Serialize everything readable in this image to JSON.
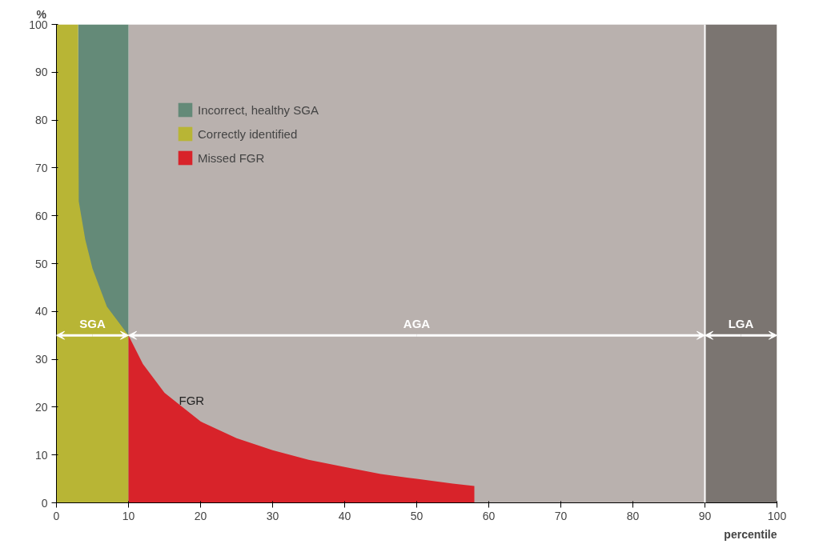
{
  "chart_data": {
    "type": "area",
    "series": [
      {
        "name": "Incorrect, healthy SGA",
        "color": "#648a78",
        "x": [
          3,
          10
        ],
        "values": [
          100,
          100
        ]
      },
      {
        "name": "Correctly identified",
        "color": "#b8b535",
        "x": [
          0,
          3,
          3.1,
          4,
          5,
          6,
          7,
          8,
          9,
          10
        ],
        "values": [
          100,
          100,
          63,
          55,
          49,
          45,
          41,
          39,
          37,
          35
        ]
      },
      {
        "name": "Missed FGR",
        "color": "#d8232a",
        "x": [
          10,
          12,
          15,
          20,
          25,
          30,
          35,
          40,
          45,
          50,
          55,
          58
        ],
        "values": [
          35,
          29,
          23,
          17,
          13.5,
          11,
          9,
          7.5,
          6,
          5,
          4,
          3.5
        ]
      }
    ],
    "bands": [
      {
        "axis": "x",
        "from": 10,
        "to": 90,
        "label": "AGA",
        "color": "#b9b1ae"
      },
      {
        "axis": "x",
        "from": 90,
        "to": 100,
        "label": "LGA",
        "color": "#7b7571"
      }
    ],
    "ref_lines": [
      {
        "axis": "x",
        "value": 90,
        "color": "#ffffff"
      }
    ],
    "annotations": [
      {
        "text": "FGR",
        "x": 17,
        "y": 20
      },
      {
        "text": "SGA",
        "x": 10,
        "y": 35
      }
    ],
    "ylabel": "%",
    "xlabel": "percentile",
    "xlim": [
      0,
      100
    ],
    "ylim": [
      0,
      100
    ],
    "xticks": [
      0,
      10,
      20,
      30,
      40,
      50,
      60,
      70,
      80,
      90,
      100
    ],
    "yticks": [
      0,
      10,
      20,
      30,
      40,
      50,
      60,
      70,
      80,
      90,
      100
    ],
    "legend": "top left"
  }
}
